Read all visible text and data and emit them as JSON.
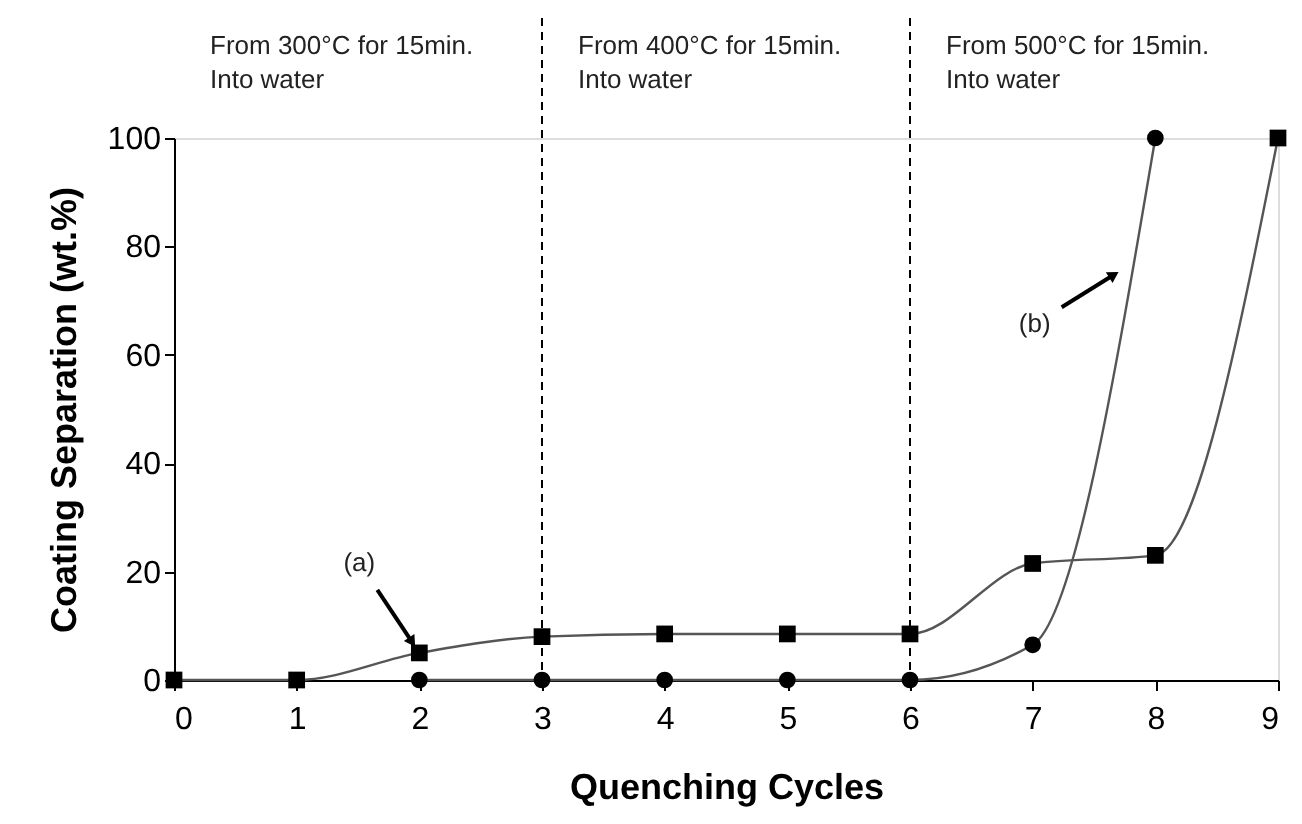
{
  "chart_data": {
    "type": "line",
    "xlabel": "Quenching Cycles",
    "ylabel": "Coating Separation (wt.%)",
    "xlim": [
      0,
      9
    ],
    "xticks": [
      0,
      1,
      2,
      3,
      4,
      5,
      6,
      7,
      8,
      9
    ],
    "ylim": [
      0,
      100
    ],
    "yticks": [
      0,
      20,
      40,
      60,
      80,
      100
    ],
    "series": [
      {
        "color": "#000000",
        "marker": "square",
        "x": [
          0,
          1,
          2,
          3,
          4,
          5,
          6,
          7,
          8,
          9
        ],
        "values": [
          0,
          0,
          5,
          8,
          8.5,
          8.5,
          8.5,
          21.5,
          23,
          100
        ]
      },
      {
        "color": "#000000",
        "marker": "circle",
        "x": [
          2,
          3,
          4,
          5,
          6,
          7,
          8
        ],
        "values": [
          0,
          0,
          0,
          0,
          0,
          6.5,
          100
        ]
      }
    ],
    "ref_lines": [
      {
        "axis": "x",
        "value": 3,
        "line_style": "dashed",
        "color": "#000000"
      },
      {
        "axis": "x",
        "value": 6,
        "line_style": "dashed",
        "color": "#000000"
      }
    ],
    "annotations": [
      "From 300°C for 15min.\nInto water",
      "From 400°C for 15min.\nInto water",
      "From 500°C for 15min.\nInto water",
      {
        "text": "(a)",
        "x": 2,
        "y": 5
      },
      {
        "text": "(b)",
        "x": 7.75,
        "y": 76
      }
    ],
    "grid": false
  }
}
